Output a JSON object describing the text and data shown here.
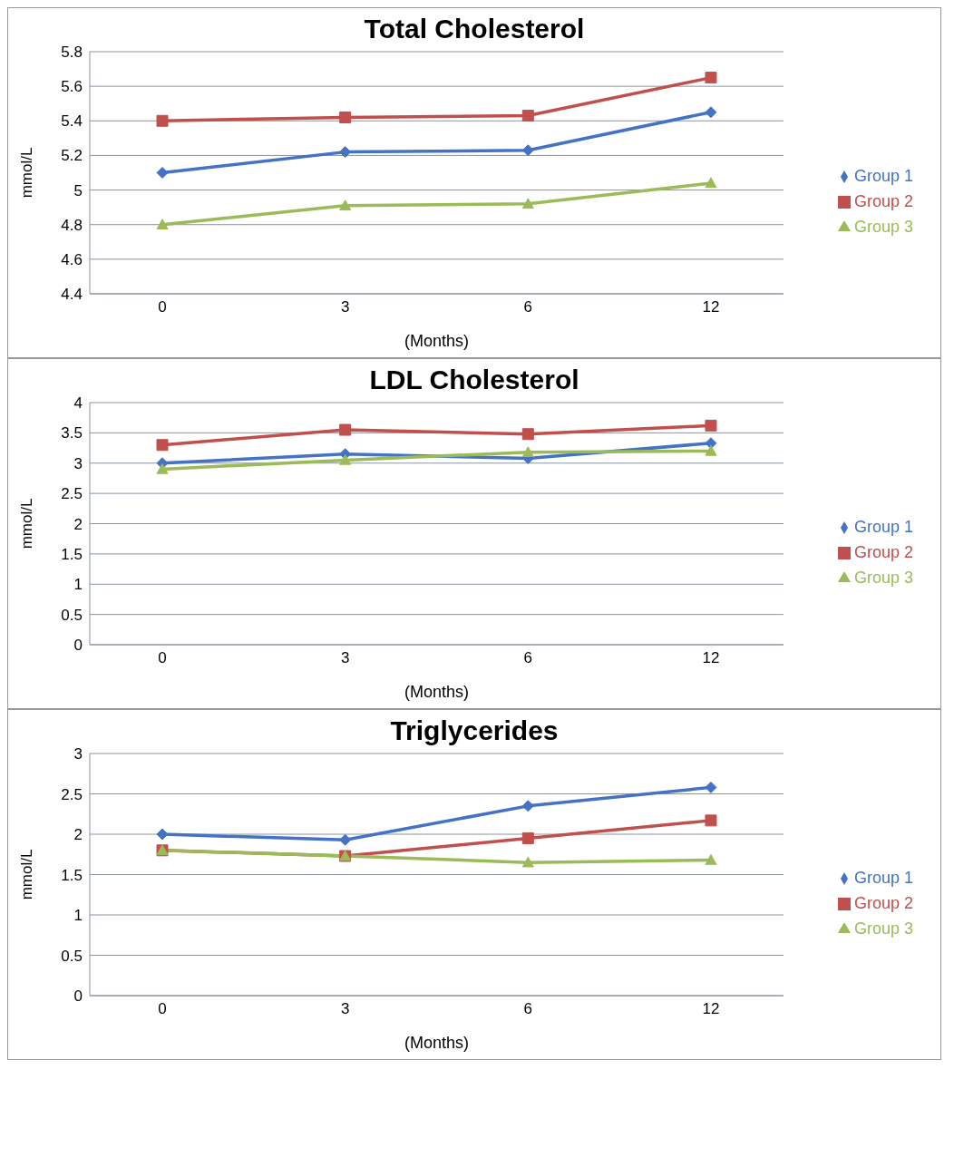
{
  "chart_data": [
    {
      "type": "line",
      "title": "Total Cholesterol",
      "xlabel": "(Months)",
      "ylabel": "mmol/L",
      "categories": [
        "0",
        "3",
        "6",
        "12"
      ],
      "ylim": [
        4.4,
        5.8
      ],
      "yticks": [
        4.4,
        4.6,
        4.8,
        5,
        5.2,
        5.4,
        5.6,
        5.8
      ],
      "grid": "y",
      "legend": "right",
      "series": [
        {
          "name": "Group 1",
          "color": "#4472c4",
          "marker": "diamond",
          "values": [
            5.1,
            5.22,
            5.23,
            5.45
          ]
        },
        {
          "name": "Group 2",
          "color": "#c0504d",
          "marker": "square",
          "values": [
            5.4,
            5.42,
            5.43,
            5.65
          ]
        },
        {
          "name": "Group 3",
          "color": "#9bbb59",
          "marker": "triangle",
          "values": [
            4.8,
            4.91,
            4.92,
            5.04
          ]
        }
      ]
    },
    {
      "type": "line",
      "title": "LDL Cholesterol",
      "xlabel": "(Months)",
      "ylabel": "mmol/L",
      "categories": [
        "0",
        "3",
        "6",
        "12"
      ],
      "ylim": [
        0,
        4
      ],
      "yticks": [
        0,
        0.5,
        1,
        1.5,
        2,
        2.5,
        3,
        3.5,
        4
      ],
      "grid": "y",
      "legend": "right",
      "series": [
        {
          "name": "Group 1",
          "color": "#4472c4",
          "marker": "diamond",
          "values": [
            3.0,
            3.15,
            3.08,
            3.33
          ]
        },
        {
          "name": "Group 2",
          "color": "#c0504d",
          "marker": "square",
          "values": [
            3.3,
            3.55,
            3.48,
            3.62
          ]
        },
        {
          "name": "Group 3",
          "color": "#9bbb59",
          "marker": "triangle",
          "values": [
            2.9,
            3.05,
            3.18,
            3.2
          ]
        }
      ]
    },
    {
      "type": "line",
      "title": "Triglycerides",
      "xlabel": "(Months)",
      "ylabel": "mmol/L",
      "categories": [
        "0",
        "3",
        "6",
        "12"
      ],
      "ylim": [
        0,
        3
      ],
      "yticks": [
        0,
        0.5,
        1,
        1.5,
        2,
        2.5,
        3
      ],
      "grid": "y",
      "legend": "right",
      "series": [
        {
          "name": "Group 1",
          "color": "#4472c4",
          "marker": "diamond",
          "values": [
            2.0,
            1.93,
            2.35,
            2.58
          ]
        },
        {
          "name": "Group 2",
          "color": "#c0504d",
          "marker": "square",
          "values": [
            1.8,
            1.73,
            1.95,
            2.17
          ]
        },
        {
          "name": "Group 3",
          "color": "#9bbb59",
          "marker": "triangle",
          "values": [
            1.8,
            1.73,
            1.65,
            1.68
          ]
        }
      ]
    }
  ]
}
